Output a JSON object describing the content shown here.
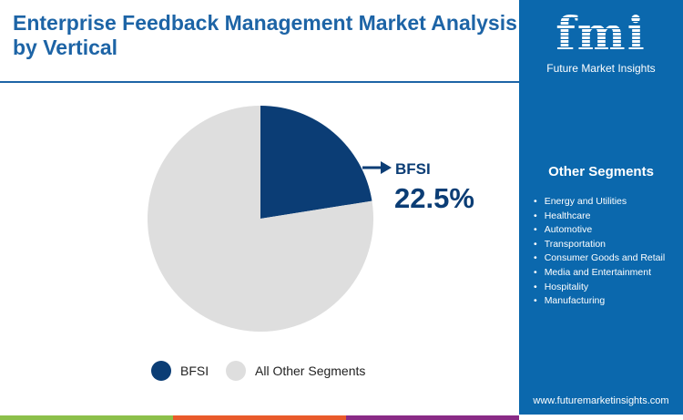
{
  "title": "Enterprise Feedback Management Market Analysis by Vertical",
  "chart_data": {
    "type": "pie",
    "slices": [
      {
        "label": "BFSI",
        "value": 22.5,
        "color": "#0b3d75"
      },
      {
        "label": "All Other Segments",
        "value": 77.5,
        "color": "#dedede"
      }
    ],
    "annotation": {
      "label": "BFSI",
      "value": "22.5%"
    },
    "legend": [
      "BFSI",
      "All Other Segments"
    ],
    "legend_placement": "bottom"
  },
  "panel": {
    "logo_text": "fmi",
    "logo_sub": "Future Market Insights",
    "segments_title": "Other Segments",
    "segments": [
      "Energy and Utilities",
      "Healthcare",
      "Automotive",
      "Transportation",
      "Consumer Goods and Retail",
      "Media and Entertainment",
      "Hospitality",
      "Manufacturing"
    ],
    "url": "www.futuremarketinsights.com"
  },
  "colors": {
    "accent": "#1d64a6",
    "panel": "#0b68ad",
    "bar": [
      "#8cc04a",
      "#e95a2b",
      "#8a2b86"
    ]
  }
}
